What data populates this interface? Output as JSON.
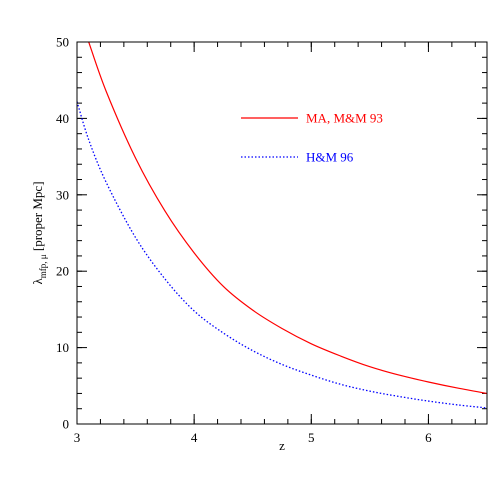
{
  "chart_data": {
    "type": "line",
    "xlabel": "z",
    "ylabel": "λ",
    "ylabel_sub": "mfp, μ",
    "ylabel_suffix": " [proper Mpc]",
    "xlim": [
      3,
      6.5
    ],
    "ylim": [
      0,
      50
    ],
    "x_ticks": [
      3,
      4,
      5,
      6
    ],
    "y_ticks": [
      0,
      10,
      20,
      30,
      40,
      50
    ],
    "x_minor_step": 0.2,
    "y_minor_step": 2,
    "legend_position": "upper-right",
    "series": [
      {
        "name": "MA, M&M 93",
        "color": "#ff0000",
        "style": "solid",
        "x": [
          3.1,
          3.25,
          3.5,
          3.75,
          4.0,
          4.25,
          4.5,
          4.75,
          5.0,
          5.25,
          5.5,
          5.75,
          6.0,
          6.25,
          6.5
        ],
        "y": [
          50.0,
          43.5,
          34.8,
          27.9,
          22.4,
          18.0,
          14.9,
          12.5,
          10.5,
          8.9,
          7.5,
          6.4,
          5.5,
          4.7,
          4.0
        ]
      },
      {
        "name": "H&M 96",
        "color": "#0000ff",
        "style": "dotted",
        "x": [
          3.0,
          3.1,
          3.25,
          3.5,
          3.75,
          4.0,
          4.25,
          4.5,
          4.75,
          5.0,
          5.25,
          5.5,
          5.75,
          6.0,
          6.25,
          6.5
        ],
        "y": [
          42.2,
          37.2,
          31.6,
          24.4,
          19.0,
          14.8,
          11.9,
          9.6,
          7.8,
          6.4,
          5.2,
          4.3,
          3.6,
          3.0,
          2.5,
          2.1
        ]
      }
    ]
  }
}
